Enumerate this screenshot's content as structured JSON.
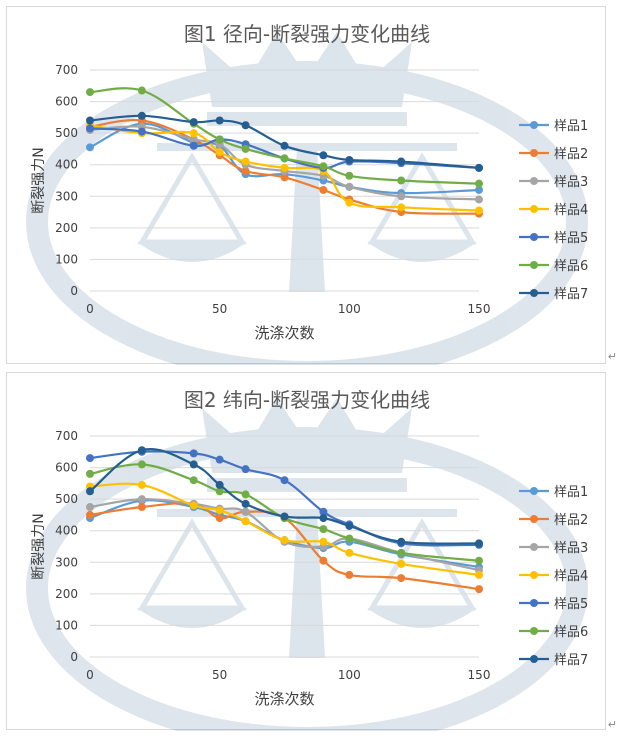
{
  "chart_data": [
    {
      "type": "line",
      "title": "图1 径向-断裂强力变化曲线",
      "xlabel": "洗涤次数",
      "ylabel": "断裂强力N",
      "xlim": [
        0,
        150
      ],
      "ylim": [
        0,
        700
      ],
      "x_ticks": [
        0,
        50,
        100,
        150
      ],
      "y_ticks": [
        0,
        100,
        200,
        300,
        400,
        500,
        600,
        700
      ],
      "grid": true,
      "legend": "right",
      "smooth": true,
      "x": [
        0,
        20,
        40,
        50,
        60,
        75,
        90,
        100,
        120,
        150
      ],
      "series": [
        {
          "name": "样品1",
          "color": "#5b9bd5",
          "values": [
            455,
            530,
            470,
            460,
            370,
            370,
            350,
            330,
            310,
            320
          ]
        },
        {
          "name": "样品2",
          "color": "#ed7d31",
          "values": [
            520,
            540,
            480,
            430,
            380,
            360,
            320,
            290,
            250,
            245
          ]
        },
        {
          "name": "样品3",
          "color": "#a5a5a5",
          "values": [
            510,
            520,
            480,
            465,
            400,
            380,
            365,
            330,
            300,
            290
          ]
        },
        {
          "name": "样品4",
          "color": "#ffc000",
          "values": [
            525,
            500,
            500,
            440,
            410,
            390,
            380,
            280,
            265,
            255
          ]
        },
        {
          "name": "样品5",
          "color": "#4472c4",
          "values": [
            515,
            505,
            460,
            480,
            465,
            420,
            390,
            410,
            405,
            390
          ]
        },
        {
          "name": "样品6",
          "color": "#70ad47",
          "values": [
            630,
            635,
            530,
            480,
            450,
            420,
            395,
            365,
            350,
            340
          ]
        },
        {
          "name": "样品7",
          "color": "#255e91",
          "values": [
            540,
            555,
            535,
            540,
            525,
            460,
            430,
            415,
            410,
            390
          ]
        }
      ]
    },
    {
      "type": "line",
      "title": "图2 纬向-断裂强力变化曲线",
      "xlabel": "洗涤次数",
      "ylabel": "断裂强力N",
      "xlim": [
        0,
        150
      ],
      "ylim": [
        0,
        700
      ],
      "x_ticks": [
        0,
        50,
        100,
        150
      ],
      "y_ticks": [
        0,
        100,
        200,
        300,
        400,
        500,
        600,
        700
      ],
      "grid": true,
      "legend": "right",
      "smooth": true,
      "x": [
        0,
        20,
        40,
        50,
        60,
        75,
        90,
        100,
        120,
        150
      ],
      "series": [
        {
          "name": "样品1",
          "color": "#5b9bd5",
          "values": [
            440,
            495,
            475,
            450,
            430,
            370,
            345,
            365,
            325,
            285
          ]
        },
        {
          "name": "样品2",
          "color": "#ed7d31",
          "values": [
            450,
            475,
            485,
            440,
            460,
            440,
            305,
            260,
            250,
            215
          ]
        },
        {
          "name": "样品3",
          "color": "#a5a5a5",
          "values": [
            475,
            500,
            485,
            470,
            460,
            365,
            350,
            375,
            330,
            275
          ]
        },
        {
          "name": "样品4",
          "color": "#ffc000",
          "values": [
            540,
            545,
            480,
            465,
            430,
            370,
            365,
            330,
            295,
            260
          ]
        },
        {
          "name": "样品5",
          "color": "#4472c4",
          "values": [
            630,
            650,
            645,
            625,
            595,
            560,
            460,
            420,
            360,
            355
          ]
        },
        {
          "name": "样品6",
          "color": "#70ad47",
          "values": [
            580,
            610,
            560,
            525,
            515,
            440,
            405,
            375,
            330,
            305
          ]
        },
        {
          "name": "样品7",
          "color": "#255e91",
          "values": [
            525,
            655,
            610,
            545,
            485,
            445,
            440,
            415,
            365,
            360
          ]
        }
      ]
    }
  ]
}
